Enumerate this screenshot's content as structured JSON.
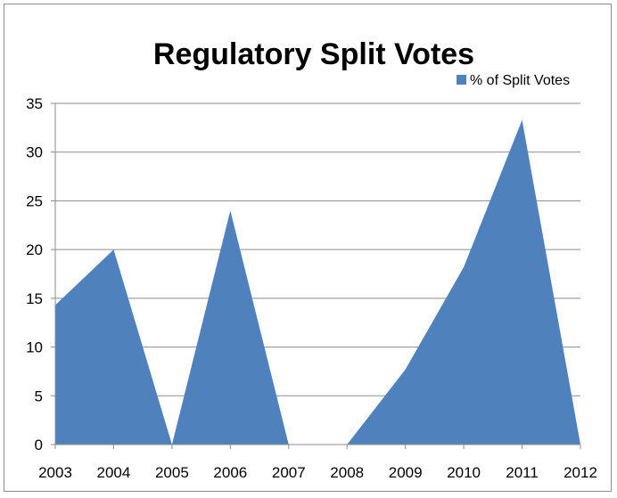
{
  "chart_data": {
    "type": "area",
    "title": "Regulatory Split Votes",
    "xlabel": "",
    "ylabel": "",
    "categories": [
      "2003",
      "2004",
      "2005",
      "2006",
      "2007",
      "2008",
      "2009",
      "2010",
      "2011",
      "2012"
    ],
    "series": [
      {
        "name": "% of Split Votes",
        "values": [
          14.3,
          20,
          0,
          24,
          0,
          0,
          7.7,
          18.2,
          33.3,
          0
        ],
        "color": "#4f81bd"
      }
    ],
    "ylim": [
      0,
      35
    ],
    "yticks": [
      0,
      5,
      10,
      15,
      20,
      25,
      30,
      35
    ],
    "grid": true,
    "legend_position": "top-right"
  }
}
